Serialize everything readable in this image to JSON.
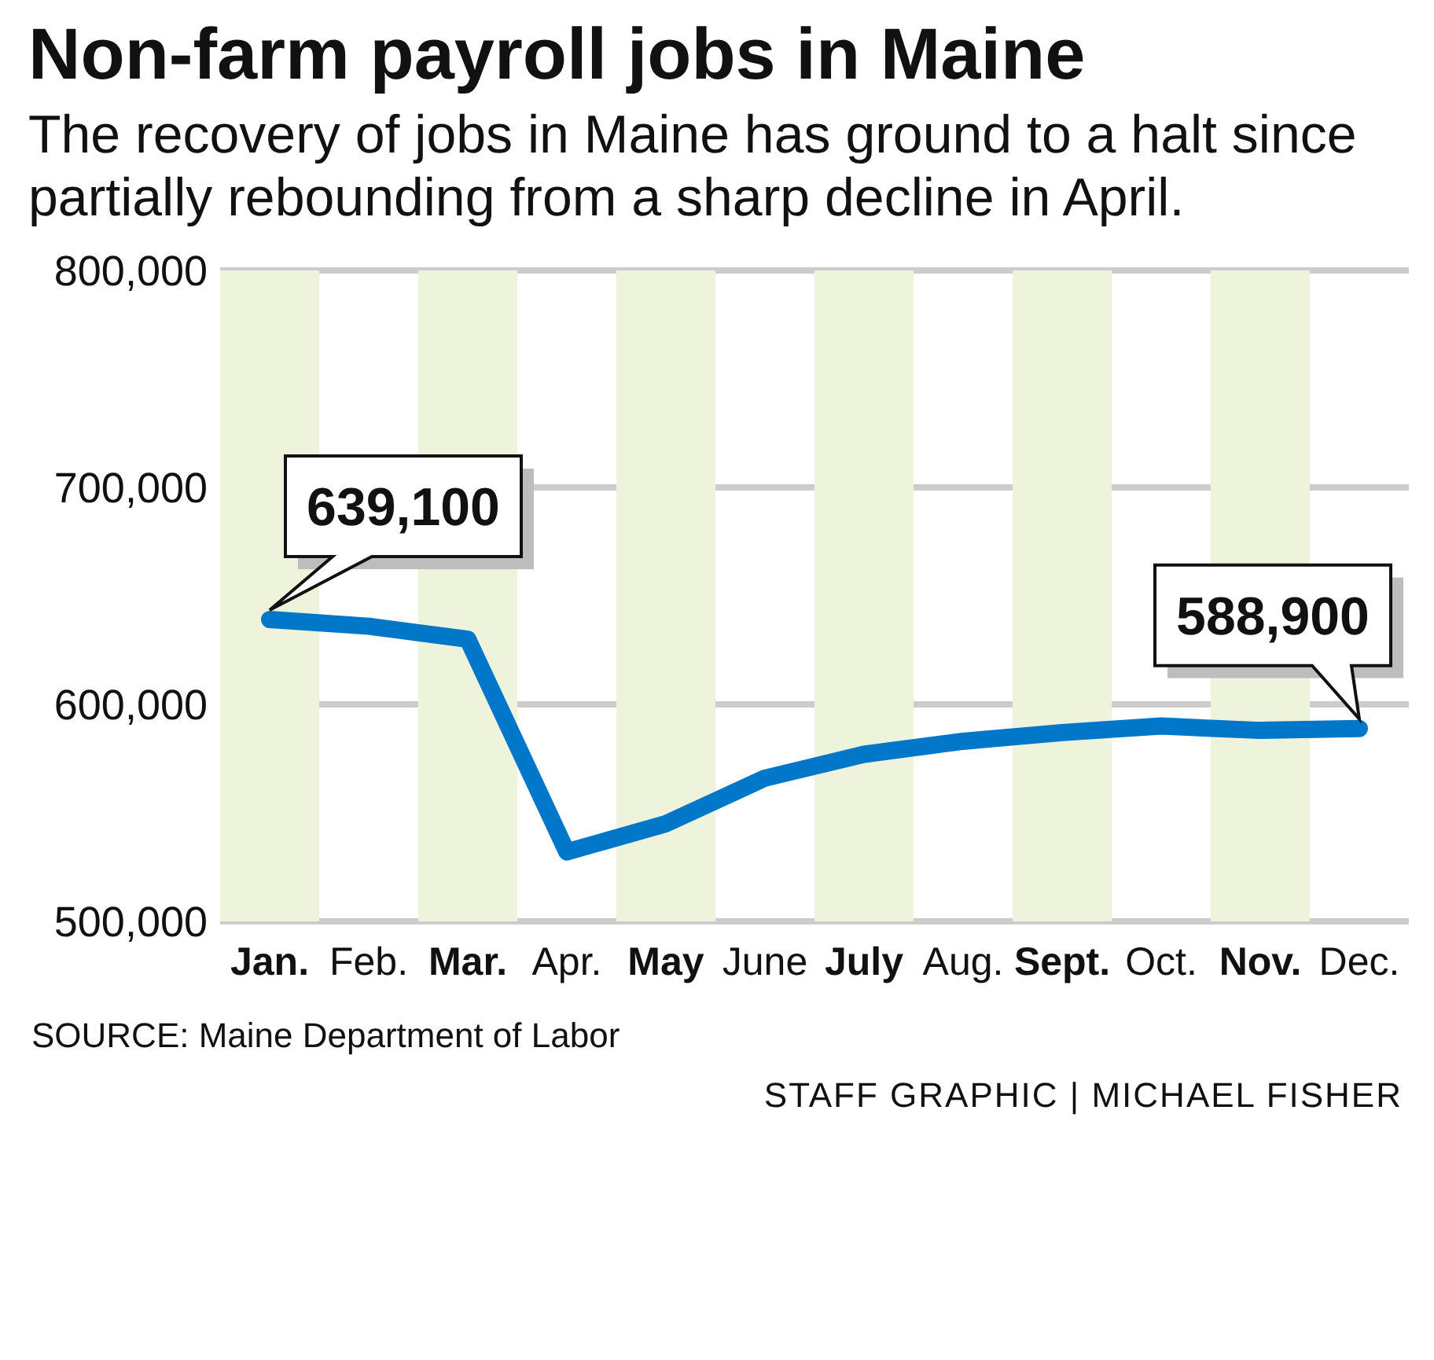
{
  "chart_data": {
    "type": "line",
    "title": "Non-farm payroll jobs in Maine",
    "subtitle": "The recovery of jobs in Maine has ground to a halt since partially rebounding from a sharp decline in April.",
    "categories": [
      "Jan.",
      "Feb.",
      "Mar.",
      "Apr.",
      "May",
      "June",
      "July",
      "Aug.",
      "Sept.",
      "Oct.",
      "Nov.",
      "Dec."
    ],
    "series": [
      {
        "color": "#0077c8",
        "values": [
          639100,
          636000,
          630000,
          532000,
          545000,
          566000,
          577000,
          583000,
          587000,
          590000,
          588000,
          588900
        ],
        "value_labels": [
          "639,100",
          null,
          null,
          null,
          null,
          null,
          null,
          null,
          null,
          null,
          null,
          "588,900"
        ]
      }
    ],
    "ylim": [
      500000,
      800000
    ],
    "yticks": [
      {
        "value": 500000,
        "label": "500,000"
      },
      {
        "value": 600000,
        "label": "600,000"
      },
      {
        "value": 700000,
        "label": "700,000"
      },
      {
        "value": 800000,
        "label": "800,000"
      }
    ],
    "grid": "y",
    "marker": "none",
    "line_style": "solid",
    "bands": [
      {
        "axis": "x",
        "from": "Jan.",
        "to": "Jan.",
        "color": "#eef3dc"
      },
      {
        "axis": "x",
        "from": "Mar.",
        "to": "Mar.",
        "color": "#eef3dc"
      },
      {
        "axis": "x",
        "from": "May",
        "to": "May",
        "color": "#eef3dc"
      },
      {
        "axis": "x",
        "from": "July",
        "to": "July",
        "color": "#eef3dc"
      },
      {
        "axis": "x",
        "from": "Sept.",
        "to": "Sept.",
        "color": "#eef3dc"
      },
      {
        "axis": "x",
        "from": "Nov.",
        "to": "Nov.",
        "color": "#eef3dc"
      }
    ],
    "annotations": [
      "SOURCE: Maine Department of Labor",
      "STAFF GRAPHIC | MICHAEL FISHER"
    ]
  }
}
